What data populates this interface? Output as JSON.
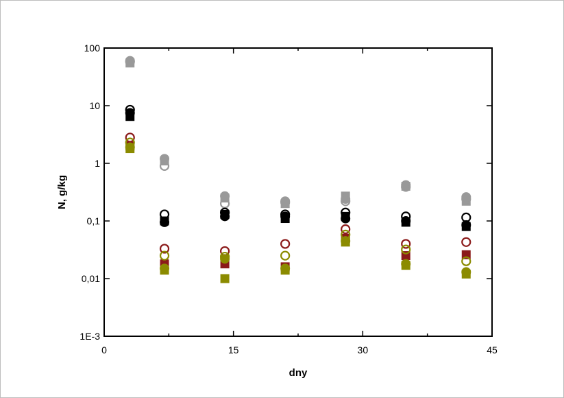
{
  "chart_data": {
    "type": "scatter",
    "title": "",
    "xlabel": "dny",
    "ylabel": "N, g/kg",
    "xlim": [
      0,
      45
    ],
    "ylim": [
      0.001,
      100
    ],
    "y_scale": "log",
    "grid": false,
    "legend": "none",
    "x_ticks": [
      {
        "value": 0,
        "label": "0"
      },
      {
        "value": 15,
        "label": "15"
      },
      {
        "value": 30,
        "label": "30"
      },
      {
        "value": 45,
        "label": "45"
      }
    ],
    "y_ticks": [
      {
        "value": 0.001,
        "label": "1E-3"
      },
      {
        "value": 0.01,
        "label": "0,01"
      },
      {
        "value": 0.1,
        "label": "0,1"
      },
      {
        "value": 1,
        "label": "1"
      },
      {
        "value": 10,
        "label": "10"
      },
      {
        "value": 100,
        "label": "100"
      }
    ],
    "series": [
      {
        "color": "#999999",
        "marker": "square-filled",
        "x": [
          3,
          7,
          14,
          21,
          28,
          35,
          42
        ],
        "y": [
          55,
          1.1,
          0.25,
          0.2,
          0.27,
          0.4,
          0.22
        ]
      },
      {
        "color": "#999999",
        "marker": "circle-filled",
        "x": [
          3,
          7,
          14,
          21,
          28,
          35,
          42
        ],
        "y": [
          60,
          1.2,
          0.27,
          0.22,
          0.24,
          0.42,
          0.26
        ]
      },
      {
        "color": "#999999",
        "marker": "circle-open",
        "x": [
          3,
          7,
          14,
          21,
          28,
          35,
          42
        ],
        "y": [
          58,
          0.9,
          0.2,
          0.21,
          0.22,
          0.39,
          0.24
        ]
      },
      {
        "color": "#000000",
        "marker": "square-filled",
        "x": [
          3,
          7,
          14,
          21,
          28,
          35,
          42
        ],
        "y": [
          6.5,
          0.1,
          0.13,
          0.11,
          0.12,
          0.095,
          0.08
        ]
      },
      {
        "color": "#000000",
        "marker": "circle-filled",
        "x": [
          3,
          7,
          14,
          21,
          28,
          35,
          42
        ],
        "y": [
          7.5,
          0.095,
          0.12,
          0.12,
          0.11,
          0.1,
          0.085
        ]
      },
      {
        "color": "#000000",
        "marker": "circle-open",
        "x": [
          3,
          7,
          14,
          21,
          28,
          35,
          42
        ],
        "y": [
          8.5,
          0.13,
          0.14,
          0.13,
          0.14,
          0.12,
          0.115
        ]
      },
      {
        "color": "#8b1a1a",
        "marker": "square-filled",
        "x": [
          3,
          7,
          14,
          21,
          28,
          35,
          42
        ],
        "y": [
          2.0,
          0.018,
          0.018,
          0.016,
          0.05,
          0.025,
          0.026
        ]
      },
      {
        "color": "#8b1a1a",
        "marker": "circle-open",
        "x": [
          3,
          7,
          14,
          21,
          28,
          35,
          42
        ],
        "y": [
          2.8,
          0.033,
          0.03,
          0.04,
          0.072,
          0.04,
          0.043
        ]
      },
      {
        "color": "#8b8b00",
        "marker": "square-filled",
        "x": [
          3,
          7,
          14,
          21,
          28,
          35,
          42
        ],
        "y": [
          1.8,
          0.014,
          0.01,
          0.014,
          0.043,
          0.017,
          0.012
        ]
      },
      {
        "color": "#8b8b00",
        "marker": "circle-filled",
        "x": [
          3,
          7,
          14,
          21,
          28,
          35,
          42
        ],
        "y": [
          1.9,
          0.015,
          0.022,
          0.015,
          0.045,
          0.018,
          0.013
        ]
      },
      {
        "color": "#8b8b00",
        "marker": "circle-open",
        "x": [
          3,
          7,
          14,
          21,
          28,
          35,
          42
        ],
        "y": [
          2.3,
          0.025,
          0.024,
          0.025,
          0.058,
          0.032,
          0.02
        ]
      }
    ]
  }
}
